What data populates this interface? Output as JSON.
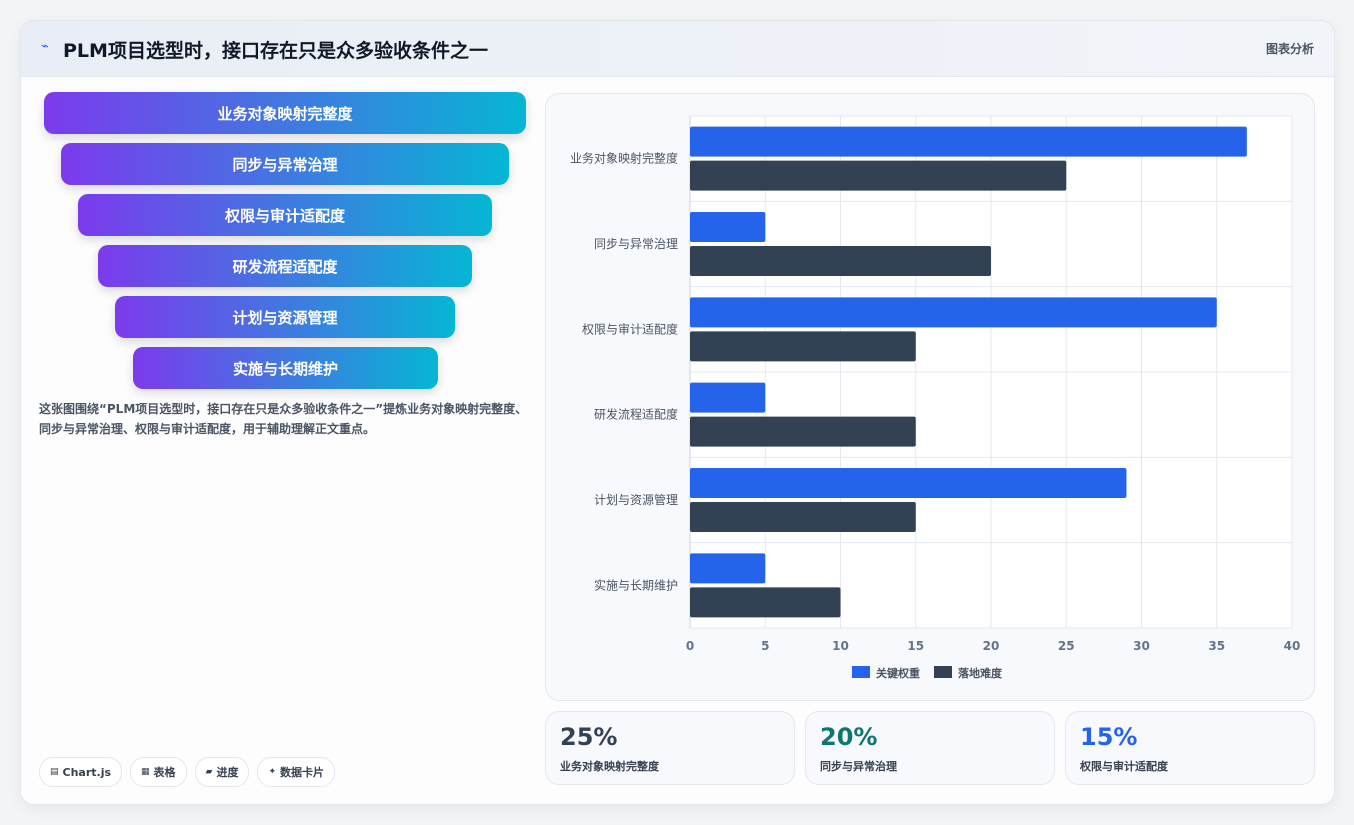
{
  "header": {
    "icon": "pulse-icon",
    "title": "PLM项目选型时，接口存在只是众多验收条件之一",
    "right_label": "图表分析"
  },
  "funnel": {
    "items": [
      "业务对象映射完整度",
      "同步与异常治理",
      "权限与审计适配度",
      "研发流程适配度",
      "计划与资源管理",
      "实施与长期维护"
    ],
    "gradient": [
      "#7c3aed",
      "#06b6d4"
    ]
  },
  "description": "这张图围绕“PLM项目选型时，接口存在只是众多验收条件之一”提炼业务对象映射完整度、同步与异常治理、权限与审计适配度，用于辅助理解正文重点。",
  "chips": [
    {
      "icon": "chart-icon",
      "glyph": "▤",
      "label": "Chart.js"
    },
    {
      "icon": "table-icon",
      "glyph": "▦",
      "label": "表格"
    },
    {
      "icon": "progress-icon",
      "glyph": "▰",
      "label": "进度"
    },
    {
      "icon": "sparkle-icon",
      "glyph": "✦",
      "label": "数据卡片"
    }
  ],
  "chart_data": {
    "type": "bar",
    "orientation": "horizontal",
    "categories": [
      "业务对象映射完整度",
      "同步与异常治理",
      "权限与审计适配度",
      "研发流程适配度",
      "计划与资源管理",
      "实施与长期维护"
    ],
    "series": [
      {
        "name": "关键权重",
        "values": [
          37,
          5,
          35,
          5,
          29,
          5
        ],
        "color": "#2563eb"
      },
      {
        "name": "落地难度",
        "values": [
          25,
          20,
          15,
          15,
          15,
          10
        ],
        "color": "#334155"
      }
    ],
    "xlim": [
      0,
      40
    ],
    "xticks": [
      "0",
      "5",
      "10",
      "15",
      "20",
      "25",
      "30",
      "35",
      "40"
    ],
    "grid": true,
    "legend": "bottom"
  },
  "stats": [
    {
      "value": "25%",
      "label": "业务对象映射完整度",
      "color": "#334155"
    },
    {
      "value": "20%",
      "label": "同步与异常治理",
      "color": "#0f766e"
    },
    {
      "value": "15%",
      "label": "权限与审计适配度",
      "color": "#2563eb"
    }
  ]
}
